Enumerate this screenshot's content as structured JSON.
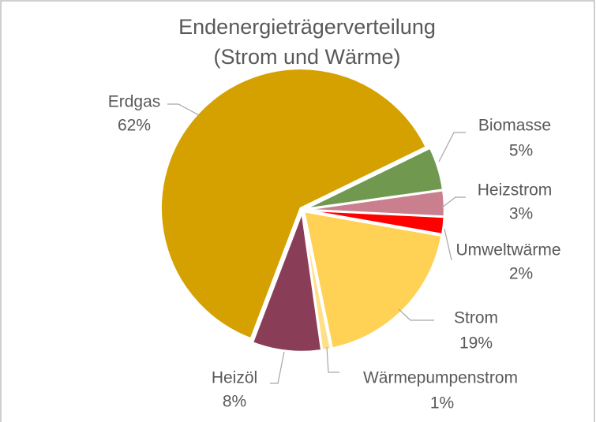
{
  "chart_data": {
    "type": "pie",
    "title": [
      "Endenergieträgerverteilung",
      "(Strom und Wärme)"
    ],
    "categories": [
      "Biomasse",
      "Heizstrom",
      "Umweltwärme",
      "Strom",
      "Wärmepumpenstrom",
      "Heizöl",
      "Erdgas"
    ],
    "values": [
      5,
      3,
      2,
      19,
      1,
      8,
      62
    ],
    "value_labels": [
      "5%",
      "3%",
      "2%",
      "19%",
      "1%",
      "8%",
      "62%"
    ],
    "colors": [
      "#70984f",
      "#c97f8e",
      "#ff0000",
      "#ffd154",
      "#ffe08a",
      "#8a3d57",
      "#d4a100"
    ]
  }
}
